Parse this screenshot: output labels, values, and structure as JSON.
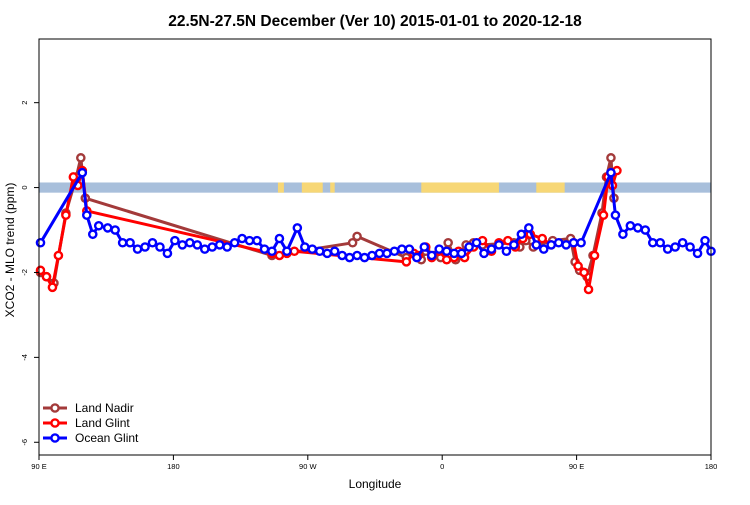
{
  "chart_data": {
    "type": "line",
    "title": "22.5N-27.5N December (Ver 10)   2015-01-01 to 2020-12-18",
    "xlabel": "Longitude",
    "ylabel": "XCO2 - MLO trend (ppm)",
    "x_ticks": [
      {
        "value": 90,
        "label": "90 E"
      },
      {
        "value": 180,
        "label": "180"
      },
      {
        "value": 270,
        "label": "90 W"
      },
      {
        "value": 360,
        "label": "0"
      },
      {
        "value": 450,
        "label": "90 E"
      },
      {
        "value": 540,
        "label": "180"
      }
    ],
    "y_ticks": [
      2,
      0,
      -2,
      -4,
      -6
    ],
    "xlim": [
      90,
      540
    ],
    "ylim": [
      -6.3,
      3.5
    ],
    "grid": false,
    "legend_position": "bottom-left",
    "land_ocean_strip": {
      "y_range": [
        -0.12,
        0.12
      ],
      "ocean_color": "#a8bfdb",
      "land_color": "#f7d776",
      "land_segments": [
        [
          250,
          254
        ],
        [
          266,
          280
        ],
        [
          285,
          288
        ],
        [
          346,
          398
        ],
        [
          423,
          442
        ]
      ]
    },
    "series": [
      {
        "name": "Land Nadir",
        "color": "#a33a3a",
        "x": [
          91,
          95,
          100,
          108,
          115,
          118,
          121,
          246,
          300,
          303,
          336,
          341,
          346,
          349,
          354,
          359,
          364,
          369,
          376,
          381,
          387,
          408,
          412,
          416,
          421,
          434,
          446,
          449,
          452,
          457,
          461,
          467,
          470,
          473,
          475
        ],
        "y": [
          -2.0,
          -2.1,
          -2.25,
          -0.6,
          0.25,
          0.7,
          -0.25,
          -1.6,
          -1.3,
          -1.15,
          -1.65,
          -1.55,
          -1.7,
          -1.5,
          -1.6,
          -1.65,
          -1.3,
          -1.7,
          -1.35,
          -1.3,
          -1.35,
          -1.3,
          -1.4,
          -1.25,
          -1.4,
          -1.25,
          -1.2,
          -1.75,
          -1.95,
          -2.1,
          -1.6,
          -0.6,
          0.25,
          0.7,
          -0.25
        ]
      },
      {
        "name": "Land Glint",
        "color": "#ff0000",
        "x": [
          91,
          95,
          99,
          103,
          108,
          113,
          116,
          119,
          122,
          246,
          251,
          256,
          261,
          336,
          341,
          344,
          349,
          353,
          358,
          363,
          368,
          371,
          375,
          381,
          387,
          393,
          398,
          404,
          409,
          414,
          419,
          427,
          433,
          448,
          451,
          455,
          458,
          462,
          468,
          471,
          474,
          477
        ],
        "y": [
          -1.95,
          -2.1,
          -2.35,
          -1.6,
          -0.65,
          0.25,
          0.05,
          0.4,
          -0.55,
          -1.55,
          -1.6,
          -1.55,
          -1.5,
          -1.75,
          -1.55,
          -1.6,
          -1.4,
          -1.65,
          -1.5,
          -1.7,
          -1.65,
          -1.5,
          -1.65,
          -1.4,
          -1.25,
          -1.5,
          -1.3,
          -1.25,
          -1.4,
          -1.2,
          -1.1,
          -1.2,
          -1.35,
          -1.3,
          -1.85,
          -2.0,
          -2.4,
          -1.6,
          -0.65,
          0.25,
          0.05,
          0.4
        ]
      },
      {
        "name": "Ocean Glint",
        "color": "#0000ff",
        "x": [
          91,
          119,
          122,
          126,
          130,
          136,
          141,
          146,
          151,
          156,
          161,
          166,
          171,
          176,
          181,
          186,
          191,
          196,
          201,
          206,
          211,
          216,
          221,
          226,
          231,
          236,
          241,
          246,
          251,
          256,
          263,
          268,
          273,
          278,
          283,
          288,
          293,
          298,
          303,
          308,
          313,
          318,
          323,
          328,
          333,
          338,
          343,
          348,
          353,
          358,
          363,
          368,
          373,
          378,
          383,
          388,
          393,
          398,
          403,
          408,
          413,
          418,
          423,
          428,
          433,
          438,
          443,
          448,
          453,
          473,
          476,
          481,
          486,
          491,
          496,
          501,
          506,
          511,
          516,
          521,
          526,
          531,
          536,
          540
        ],
        "y": [
          -1.3,
          0.35,
          -0.65,
          -1.1,
          -0.9,
          -0.95,
          -1.0,
          -1.3,
          -1.3,
          -1.45,
          -1.4,
          -1.3,
          -1.4,
          -1.55,
          -1.25,
          -1.35,
          -1.3,
          -1.35,
          -1.45,
          -1.4,
          -1.35,
          -1.4,
          -1.3,
          -1.2,
          -1.25,
          -1.25,
          -1.45,
          -1.5,
          -1.2,
          -1.5,
          -0.95,
          -1.4,
          -1.45,
          -1.5,
          -1.55,
          -1.5,
          -1.6,
          -1.65,
          -1.6,
          -1.65,
          -1.6,
          -1.55,
          -1.55,
          -1.5,
          -1.45,
          -1.45,
          -1.65,
          -1.4,
          -1.6,
          -1.45,
          -1.5,
          -1.55,
          -1.55,
          -1.4,
          -1.3,
          -1.55,
          -1.45,
          -1.35,
          -1.5,
          -1.35,
          -1.1,
          -0.95,
          -1.35,
          -1.45,
          -1.35,
          -1.3,
          -1.35,
          -1.3,
          -1.3,
          0.35,
          -0.65,
          -1.1,
          -0.9,
          -0.95,
          -1.0,
          -1.3,
          -1.3,
          -1.45,
          -1.4,
          -1.3,
          -1.4,
          -1.55,
          -1.25,
          -1.5
        ]
      }
    ]
  }
}
